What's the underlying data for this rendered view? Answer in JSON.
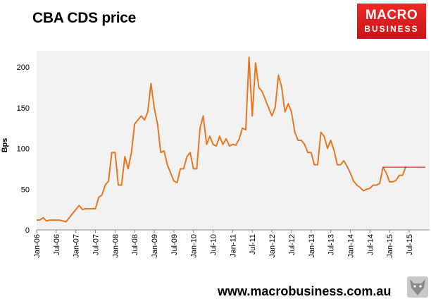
{
  "header": {
    "title": "CBA CDS price"
  },
  "logo": {
    "line1": "MACRO",
    "line2": "BUSINESS",
    "icon": "macrobusiness-logo"
  },
  "footer": {
    "url": "www.macrobusiness.com.au",
    "icon": "wolf-icon"
  },
  "chart_data": {
    "type": "line",
    "title": "CBA CDS price",
    "ylabel": "Bps",
    "xlabel": "",
    "ylim": [
      0,
      220
    ],
    "yticks": [
      0,
      50,
      100,
      150,
      200
    ],
    "x_tick_labels": [
      "Jan-06",
      "Jul-06",
      "Jan-07",
      "Jul-07",
      "Jan-08",
      "Jul-08",
      "Jan-09",
      "Jul-09",
      "Jan-10",
      "Jul-10",
      "Jan-11",
      "Jul-11",
      "Jan-12",
      "Jul-12",
      "Jan-13",
      "Jul-13",
      "Jan-14",
      "Jul-14",
      "Jan-15",
      "Jul-15"
    ],
    "grid": false,
    "series": [
      {
        "color": "#e87722",
        "points": [
          [
            "2006-01",
            12
          ],
          [
            "2006-02",
            12
          ],
          [
            "2006-03",
            15
          ],
          [
            "2006-04",
            11
          ],
          [
            "2006-05",
            12
          ],
          [
            "2006-06",
            12
          ],
          [
            "2006-07",
            12
          ],
          [
            "2006-08",
            12
          ],
          [
            "2006-09",
            11
          ],
          [
            "2006-10",
            10
          ],
          [
            "2006-11",
            15
          ],
          [
            "2006-12",
            20
          ],
          [
            "2007-01",
            25
          ],
          [
            "2007-02",
            30
          ],
          [
            "2007-03",
            25
          ],
          [
            "2007-04",
            26
          ],
          [
            "2007-05",
            26
          ],
          [
            "2007-06",
            26
          ],
          [
            "2007-07",
            26
          ],
          [
            "2007-08",
            40
          ],
          [
            "2007-09",
            43
          ],
          [
            "2007-10",
            55
          ],
          [
            "2007-11",
            60
          ],
          [
            "2007-12",
            95
          ],
          [
            "2008-01",
            95
          ],
          [
            "2008-02",
            55
          ],
          [
            "2008-03",
            55
          ],
          [
            "2008-04",
            90
          ],
          [
            "2008-05",
            75
          ],
          [
            "2008-06",
            95
          ],
          [
            "2008-07",
            130
          ],
          [
            "2008-08",
            135
          ],
          [
            "2008-09",
            140
          ],
          [
            "2008-10",
            135
          ],
          [
            "2008-11",
            145
          ],
          [
            "2008-12",
            180
          ],
          [
            "2009-01",
            150
          ],
          [
            "2009-02",
            130
          ],
          [
            "2009-03",
            95
          ],
          [
            "2009-04",
            97
          ],
          [
            "2009-05",
            80
          ],
          [
            "2009-06",
            70
          ],
          [
            "2009-07",
            60
          ],
          [
            "2009-08",
            58
          ],
          [
            "2009-09",
            75
          ],
          [
            "2009-10",
            75
          ],
          [
            "2009-11",
            90
          ],
          [
            "2009-12",
            95
          ],
          [
            "2010-01",
            75
          ],
          [
            "2010-02",
            75
          ],
          [
            "2010-03",
            125
          ],
          [
            "2010-04",
            140
          ],
          [
            "2010-05",
            105
          ],
          [
            "2010-06",
            115
          ],
          [
            "2010-07",
            105
          ],
          [
            "2010-08",
            103
          ],
          [
            "2010-09",
            115
          ],
          [
            "2010-10",
            105
          ],
          [
            "2010-11",
            112
          ],
          [
            "2010-12",
            103
          ],
          [
            "2011-01",
            105
          ],
          [
            "2011-02",
            104
          ],
          [
            "2011-03",
            112
          ],
          [
            "2011-04",
            125
          ],
          [
            "2011-05",
            123
          ],
          [
            "2011-06",
            212
          ],
          [
            "2011-07",
            140
          ],
          [
            "2011-08",
            205
          ],
          [
            "2011-09",
            175
          ],
          [
            "2011-10",
            170
          ],
          [
            "2011-11",
            160
          ],
          [
            "2011-12",
            150
          ],
          [
            "2012-01",
            140
          ],
          [
            "2012-02",
            150
          ],
          [
            "2012-03",
            190
          ],
          [
            "2012-04",
            175
          ],
          [
            "2012-05",
            145
          ],
          [
            "2012-06",
            155
          ],
          [
            "2012-07",
            145
          ],
          [
            "2012-08",
            120
          ],
          [
            "2012-09",
            110
          ],
          [
            "2012-10",
            110
          ],
          [
            "2012-11",
            105
          ],
          [
            "2012-12",
            95
          ],
          [
            "2013-01",
            95
          ],
          [
            "2013-02",
            80
          ],
          [
            "2013-03",
            80
          ],
          [
            "2013-04",
            120
          ],
          [
            "2013-05",
            115
          ],
          [
            "2013-06",
            100
          ],
          [
            "2013-07",
            110
          ],
          [
            "2013-08",
            98
          ],
          [
            "2013-09",
            80
          ],
          [
            "2013-10",
            80
          ],
          [
            "2013-11",
            85
          ],
          [
            "2013-12",
            78
          ],
          [
            "2014-01",
            70
          ],
          [
            "2014-02",
            60
          ],
          [
            "2014-03",
            55
          ],
          [
            "2014-04",
            52
          ],
          [
            "2014-05",
            48
          ],
          [
            "2014-06",
            50
          ],
          [
            "2014-07",
            51
          ],
          [
            "2014-08",
            55
          ],
          [
            "2014-09",
            55
          ],
          [
            "2014-10",
            57
          ],
          [
            "2014-11",
            77
          ],
          [
            "2014-12",
            70
          ],
          [
            "2015-01",
            59
          ],
          [
            "2015-02",
            59
          ],
          [
            "2015-03",
            61
          ],
          [
            "2015-04",
            67
          ],
          [
            "2015-05",
            67
          ],
          [
            "2015-06",
            78
          ]
        ]
      }
    ],
    "reference_line": {
      "value": 77,
      "from": "2014-11",
      "to": "2015-12",
      "color": "#e03030"
    }
  }
}
